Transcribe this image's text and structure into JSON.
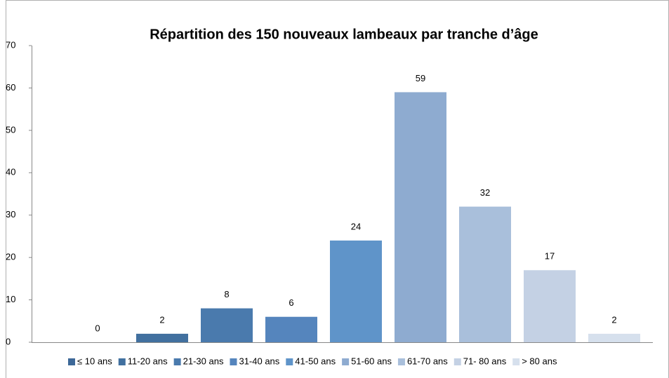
{
  "chart_data": {
    "type": "bar",
    "title": "Répartition des 150 nouveaux lambeaux par tranche d’âge",
    "categories": [
      "≤ 10 ans",
      "11-20 ans",
      "21-30 ans",
      "31-40 ans",
      "41-50 ans",
      "51-60 ans",
      "61-70 ans",
      "71- 80 ans",
      "> 80 ans"
    ],
    "values": [
      0,
      2,
      8,
      6,
      24,
      59,
      32,
      17,
      2
    ],
    "colors": [
      "#3d6898",
      "#41709f",
      "#4a7aad",
      "#5585bd",
      "#5f94c9",
      "#8eabd0",
      "#a9bfdb",
      "#c4d1e4",
      "#d6e0ed"
    ],
    "ylim": [
      0,
      70
    ],
    "yticks": [
      0,
      10,
      20,
      30,
      40,
      50,
      60,
      70
    ],
    "grid": false,
    "legend": "bottom"
  }
}
